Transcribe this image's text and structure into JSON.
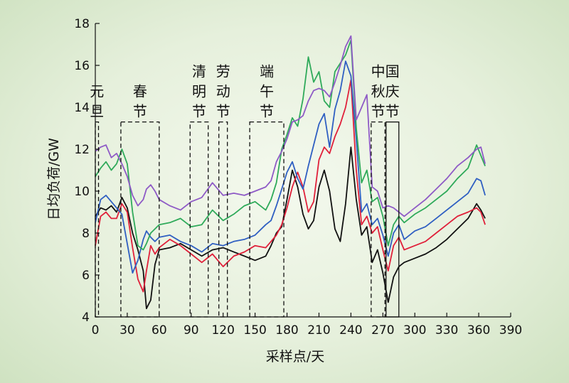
{
  "chart_data": {
    "type": "line",
    "title": "",
    "xlabel": "采样点/天",
    "ylabel": "日均负荷/GW",
    "xlim": [
      0,
      390
    ],
    "ylim": [
      4,
      18
    ],
    "xticks": [
      0,
      30,
      60,
      90,
      120,
      150,
      180,
      210,
      240,
      270,
      300,
      330,
      360,
      390
    ],
    "yticks": [
      4,
      6,
      8,
      10,
      12,
      14,
      16,
      18
    ],
    "grid": false,
    "legend": "none",
    "holidays": [
      {
        "label": "元旦",
        "lines": [
          "元",
          "旦"
        ],
        "x_range": [
          0,
          3
        ],
        "style": "dashed"
      },
      {
        "label": "春节",
        "lines": [
          "春",
          "节"
        ],
        "x_range": [
          24,
          60
        ],
        "style": "dashed"
      },
      {
        "label": "清明节",
        "lines": [
          "清",
          "明",
          "节"
        ],
        "x_range": [
          89,
          106
        ],
        "style": "dashed"
      },
      {
        "label": "劳动节",
        "lines": [
          "劳",
          "动",
          "节"
        ],
        "x_range": [
          116,
          124
        ],
        "style": "dashed"
      },
      {
        "label": "端午节",
        "lines": [
          "端",
          "午",
          "节"
        ],
        "x_range": [
          145,
          177
        ],
        "style": "dashed"
      },
      {
        "label": "中秋节",
        "lines": [
          "中",
          "秋",
          "节"
        ],
        "x_range": [
          259,
          272
        ],
        "style": "dashed"
      },
      {
        "label": "国庆节",
        "lines": [
          "国",
          "庆",
          "节"
        ],
        "x_range": [
          273,
          285
        ],
        "style": "solid"
      }
    ],
    "series": [
      {
        "color": "#111111",
        "values": [
          [
            0,
            8.8
          ],
          [
            5,
            9.2
          ],
          [
            10,
            9.1
          ],
          [
            15,
            9.3
          ],
          [
            20,
            9.0
          ],
          [
            25,
            9.7
          ],
          [
            30,
            9.2
          ],
          [
            35,
            8.0
          ],
          [
            40,
            7.2
          ],
          [
            45,
            6.2
          ],
          [
            48,
            4.4
          ],
          [
            52,
            4.8
          ],
          [
            56,
            6.5
          ],
          [
            60,
            7.2
          ],
          [
            70,
            7.3
          ],
          [
            80,
            7.5
          ],
          [
            90,
            7.2
          ],
          [
            100,
            6.9
          ],
          [
            110,
            7.2
          ],
          [
            120,
            7.3
          ],
          [
            130,
            7.1
          ],
          [
            140,
            6.9
          ],
          [
            150,
            6.7
          ],
          [
            160,
            6.9
          ],
          [
            165,
            7.4
          ],
          [
            170,
            8.0
          ],
          [
            175,
            8.3
          ],
          [
            180,
            9.6
          ],
          [
            185,
            11.0
          ],
          [
            190,
            10.2
          ],
          [
            195,
            8.9
          ],
          [
            200,
            8.2
          ],
          [
            205,
            8.6
          ],
          [
            210,
            10.2
          ],
          [
            215,
            11.0
          ],
          [
            220,
            10.0
          ],
          [
            225,
            8.2
          ],
          [
            230,
            7.6
          ],
          [
            235,
            9.4
          ],
          [
            240,
            12.1
          ],
          [
            245,
            9.6
          ],
          [
            250,
            7.9
          ],
          [
            255,
            8.3
          ],
          [
            260,
            6.6
          ],
          [
            265,
            7.2
          ],
          [
            270,
            6.1
          ],
          [
            275,
            4.7
          ],
          [
            280,
            5.9
          ],
          [
            285,
            6.4
          ],
          [
            290,
            6.6
          ],
          [
            300,
            6.8
          ],
          [
            310,
            7.0
          ],
          [
            320,
            7.3
          ],
          [
            330,
            7.7
          ],
          [
            340,
            8.2
          ],
          [
            350,
            8.7
          ],
          [
            358,
            9.4
          ],
          [
            362,
            9.1
          ],
          [
            366,
            8.7
          ]
        ]
      },
      {
        "color": "#e0203a",
        "values": [
          [
            0,
            7.4
          ],
          [
            5,
            8.8
          ],
          [
            10,
            9.0
          ],
          [
            15,
            8.7
          ],
          [
            20,
            8.7
          ],
          [
            25,
            9.4
          ],
          [
            30,
            9.0
          ],
          [
            35,
            7.3
          ],
          [
            40,
            5.8
          ],
          [
            45,
            5.2
          ],
          [
            48,
            6.2
          ],
          [
            52,
            7.4
          ],
          [
            56,
            7.0
          ],
          [
            60,
            7.3
          ],
          [
            70,
            7.7
          ],
          [
            80,
            7.4
          ],
          [
            90,
            7.0
          ],
          [
            100,
            6.6
          ],
          [
            110,
            7.0
          ],
          [
            120,
            6.4
          ],
          [
            130,
            6.9
          ],
          [
            140,
            7.1
          ],
          [
            150,
            7.4
          ],
          [
            160,
            7.3
          ],
          [
            165,
            7.6
          ],
          [
            170,
            7.9
          ],
          [
            175,
            8.4
          ],
          [
            180,
            9.2
          ],
          [
            185,
            10.2
          ],
          [
            190,
            10.9
          ],
          [
            195,
            10.2
          ],
          [
            200,
            9.0
          ],
          [
            205,
            9.5
          ],
          [
            210,
            11.5
          ],
          [
            215,
            12.1
          ],
          [
            220,
            11.8
          ],
          [
            225,
            12.6
          ],
          [
            230,
            13.2
          ],
          [
            235,
            14.0
          ],
          [
            240,
            15.3
          ],
          [
            245,
            11.0
          ],
          [
            250,
            8.4
          ],
          [
            255,
            8.8
          ],
          [
            260,
            8.0
          ],
          [
            265,
            8.3
          ],
          [
            270,
            7.2
          ],
          [
            275,
            6.2
          ],
          [
            280,
            7.4
          ],
          [
            285,
            7.8
          ],
          [
            290,
            7.2
          ],
          [
            300,
            7.4
          ],
          [
            310,
            7.6
          ],
          [
            320,
            8.0
          ],
          [
            330,
            8.4
          ],
          [
            340,
            8.8
          ],
          [
            350,
            9.0
          ],
          [
            358,
            9.2
          ],
          [
            362,
            9.0
          ],
          [
            366,
            8.4
          ]
        ]
      },
      {
        "color": "#2f5fc2",
        "values": [
          [
            0,
            8.5
          ],
          [
            5,
            9.6
          ],
          [
            10,
            9.8
          ],
          [
            15,
            9.5
          ],
          [
            20,
            9.2
          ],
          [
            25,
            8.9
          ],
          [
            30,
            7.5
          ],
          [
            35,
            6.1
          ],
          [
            40,
            6.7
          ],
          [
            45,
            7.7
          ],
          [
            48,
            8.1
          ],
          [
            52,
            7.8
          ],
          [
            56,
            7.6
          ],
          [
            60,
            7.8
          ],
          [
            70,
            7.9
          ],
          [
            80,
            7.6
          ],
          [
            90,
            7.4
          ],
          [
            100,
            7.1
          ],
          [
            110,
            7.5
          ],
          [
            120,
            7.4
          ],
          [
            130,
            7.6
          ],
          [
            140,
            7.7
          ],
          [
            150,
            7.9
          ],
          [
            160,
            8.4
          ],
          [
            165,
            8.6
          ],
          [
            170,
            9.3
          ],
          [
            175,
            10.1
          ],
          [
            180,
            10.9
          ],
          [
            185,
            11.4
          ],
          [
            190,
            10.6
          ],
          [
            195,
            10.1
          ],
          [
            200,
            11.2
          ],
          [
            205,
            12.2
          ],
          [
            210,
            13.2
          ],
          [
            215,
            13.7
          ],
          [
            220,
            12.1
          ],
          [
            225,
            13.9
          ],
          [
            230,
            14.8
          ],
          [
            235,
            16.2
          ],
          [
            240,
            15.5
          ],
          [
            245,
            12.5
          ],
          [
            250,
            9.0
          ],
          [
            255,
            9.4
          ],
          [
            260,
            8.4
          ],
          [
            265,
            8.7
          ],
          [
            270,
            7.9
          ],
          [
            275,
            6.9
          ],
          [
            280,
            8.0
          ],
          [
            285,
            8.4
          ],
          [
            290,
            7.7
          ],
          [
            300,
            8.1
          ],
          [
            310,
            8.3
          ],
          [
            320,
            8.7
          ],
          [
            330,
            9.1
          ],
          [
            340,
            9.5
          ],
          [
            350,
            9.9
          ],
          [
            358,
            10.6
          ],
          [
            362,
            10.5
          ],
          [
            366,
            9.8
          ]
        ]
      },
      {
        "color": "#2faa5a",
        "values": [
          [
            0,
            10.7
          ],
          [
            5,
            11.1
          ],
          [
            10,
            11.4
          ],
          [
            15,
            11.0
          ],
          [
            20,
            11.3
          ],
          [
            25,
            12.0
          ],
          [
            30,
            11.3
          ],
          [
            35,
            9.0
          ],
          [
            40,
            7.4
          ],
          [
            45,
            7.2
          ],
          [
            48,
            7.5
          ],
          [
            52,
            8.0
          ],
          [
            56,
            8.2
          ],
          [
            60,
            8.4
          ],
          [
            70,
            8.5
          ],
          [
            80,
            8.7
          ],
          [
            90,
            8.3
          ],
          [
            100,
            8.4
          ],
          [
            110,
            9.1
          ],
          [
            120,
            8.6
          ],
          [
            130,
            8.9
          ],
          [
            140,
            9.3
          ],
          [
            150,
            9.5
          ],
          [
            160,
            9.1
          ],
          [
            165,
            9.6
          ],
          [
            170,
            10.4
          ],
          [
            175,
            12.0
          ],
          [
            180,
            12.7
          ],
          [
            185,
            13.5
          ],
          [
            190,
            13.1
          ],
          [
            195,
            14.4
          ],
          [
            200,
            16.4
          ],
          [
            205,
            15.2
          ],
          [
            210,
            15.7
          ],
          [
            215,
            14.3
          ],
          [
            220,
            14.0
          ],
          [
            225,
            15.7
          ],
          [
            230,
            16.1
          ],
          [
            235,
            16.5
          ],
          [
            240,
            17.2
          ],
          [
            245,
            13.0
          ],
          [
            250,
            10.4
          ],
          [
            255,
            11.0
          ],
          [
            260,
            9.5
          ],
          [
            265,
            9.7
          ],
          [
            270,
            8.8
          ],
          [
            275,
            7.4
          ],
          [
            280,
            8.4
          ],
          [
            285,
            8.8
          ],
          [
            290,
            8.5
          ],
          [
            300,
            8.9
          ],
          [
            310,
            9.2
          ],
          [
            320,
            9.6
          ],
          [
            330,
            10.0
          ],
          [
            340,
            10.6
          ],
          [
            350,
            11.1
          ],
          [
            358,
            12.2
          ],
          [
            362,
            11.7
          ],
          [
            366,
            11.2
          ]
        ]
      },
      {
        "color": "#8e5ac6",
        "values": [
          [
            0,
            11.9
          ],
          [
            5,
            12.1
          ],
          [
            10,
            12.2
          ],
          [
            15,
            11.6
          ],
          [
            20,
            11.8
          ],
          [
            25,
            11.3
          ],
          [
            30,
            10.7
          ],
          [
            35,
            9.8
          ],
          [
            40,
            9.3
          ],
          [
            45,
            9.6
          ],
          [
            48,
            10.1
          ],
          [
            52,
            10.3
          ],
          [
            56,
            10.0
          ],
          [
            60,
            9.6
          ],
          [
            70,
            9.3
          ],
          [
            80,
            9.1
          ],
          [
            90,
            9.5
          ],
          [
            100,
            9.7
          ],
          [
            110,
            10.4
          ],
          [
            120,
            9.8
          ],
          [
            130,
            9.9
          ],
          [
            140,
            9.8
          ],
          [
            150,
            10.0
          ],
          [
            160,
            10.2
          ],
          [
            165,
            10.5
          ],
          [
            170,
            11.4
          ],
          [
            175,
            11.9
          ],
          [
            180,
            12.5
          ],
          [
            185,
            13.3
          ],
          [
            190,
            13.4
          ],
          [
            195,
            13.6
          ],
          [
            200,
            14.3
          ],
          [
            205,
            14.8
          ],
          [
            210,
            14.9
          ],
          [
            215,
            14.8
          ],
          [
            220,
            14.5
          ],
          [
            225,
            15.2
          ],
          [
            230,
            16.0
          ],
          [
            235,
            16.9
          ],
          [
            240,
            17.4
          ],
          [
            245,
            13.4
          ],
          [
            250,
            14.0
          ],
          [
            255,
            14.6
          ],
          [
            260,
            10.2
          ],
          [
            265,
            10.0
          ],
          [
            270,
            9.2
          ],
          [
            275,
            9.3
          ],
          [
            280,
            9.2
          ],
          [
            285,
            9.0
          ],
          [
            290,
            8.8
          ],
          [
            300,
            9.2
          ],
          [
            310,
            9.6
          ],
          [
            320,
            10.1
          ],
          [
            330,
            10.6
          ],
          [
            340,
            11.2
          ],
          [
            350,
            11.6
          ],
          [
            358,
            12.0
          ],
          [
            362,
            12.1
          ],
          [
            366,
            11.3
          ]
        ]
      }
    ]
  }
}
